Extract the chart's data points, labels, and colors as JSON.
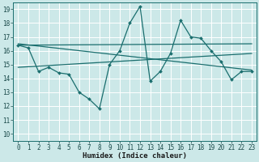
{
  "xlabel": "Humidex (Indice chaleur)",
  "bg_color": "#cce8e8",
  "grid_color": "#ffffff",
  "line_color": "#1a6e6e",
  "xlim": [
    -0.5,
    23.5
  ],
  "ylim": [
    9.5,
    19.5
  ],
  "yticks": [
    10,
    11,
    12,
    13,
    14,
    15,
    16,
    17,
    18,
    19
  ],
  "xticks": [
    0,
    1,
    2,
    3,
    4,
    5,
    6,
    7,
    8,
    9,
    10,
    11,
    12,
    13,
    14,
    15,
    16,
    17,
    18,
    19,
    20,
    21,
    22,
    23
  ],
  "line1_x": [
    0,
    1,
    2,
    3,
    4,
    5,
    6,
    7,
    8,
    9,
    10,
    11,
    12,
    13,
    14,
    15,
    16,
    17,
    18,
    19,
    20,
    21,
    22,
    23
  ],
  "line1_y": [
    16.4,
    16.2,
    14.5,
    14.8,
    14.4,
    14.3,
    13.0,
    12.5,
    11.8,
    15.0,
    16.0,
    18.0,
    19.2,
    13.8,
    14.5,
    15.8,
    18.2,
    17.0,
    16.9,
    16.0,
    15.2,
    13.9,
    14.5,
    14.5
  ],
  "line2_x": [
    0,
    23
  ],
  "line2_y": [
    16.4,
    16.5
  ],
  "line3_x": [
    0,
    23
  ],
  "line3_y": [
    14.8,
    15.8
  ],
  "line4_x": [
    0,
    23
  ],
  "line4_y": [
    16.5,
    14.6
  ],
  "tick_fontsize": 5.5,
  "xlabel_fontsize": 6.5
}
